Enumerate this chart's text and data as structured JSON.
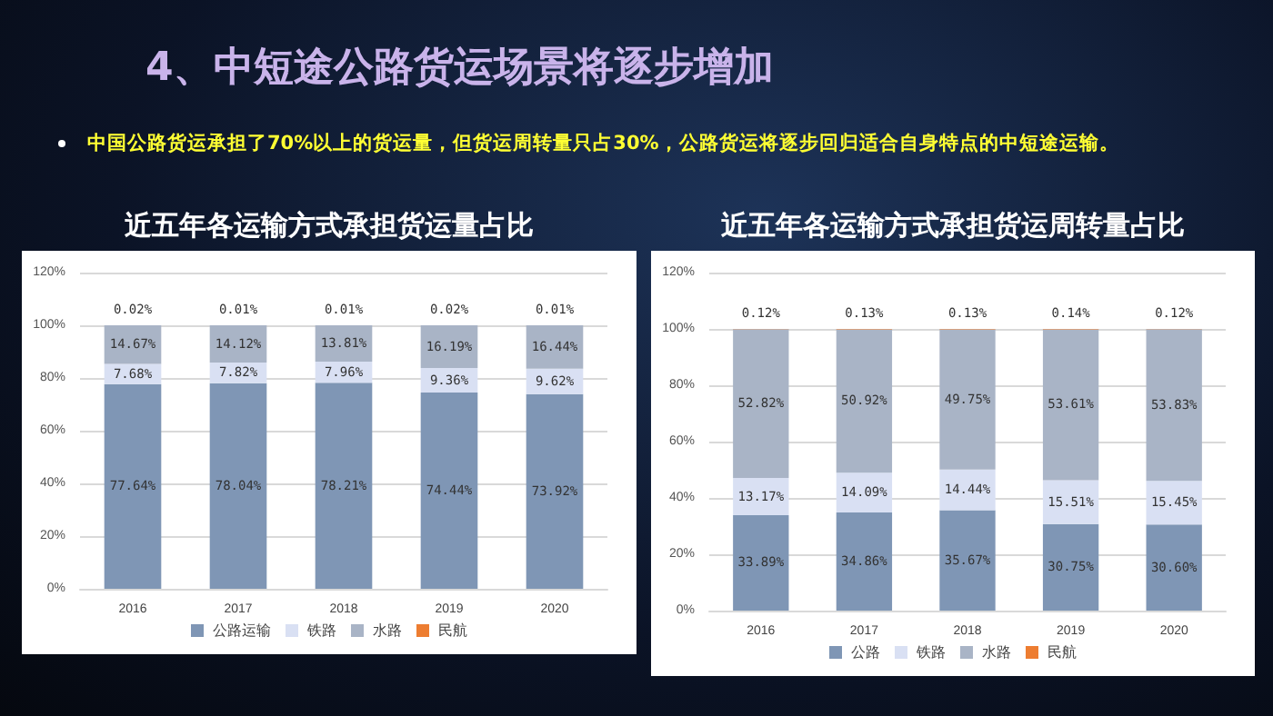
{
  "chart_data": [
    {
      "type": "bar",
      "stacked": true,
      "title": "近五年各运输方式承担货运量占比",
      "annotations": [
        "4、中短途公路货运场景将逐步增加",
        "中国公路货运承担了70%以上的货运量，但货运周转量只占30%，公路货运将逐步回归适合自身特点的中短途运输。"
      ],
      "categories": [
        "2016",
        "2017",
        "2018",
        "2019",
        "2020"
      ],
      "series": [
        {
          "name": "公路运输",
          "color": "#7f96b5",
          "values": [
            77.64,
            78.04,
            78.21,
            74.44,
            73.92
          ],
          "value_labels": [
            "77.64%",
            "78.04%",
            "78.21%",
            "74.44%",
            "73.92%"
          ]
        },
        {
          "name": "铁路",
          "color": "#d9e0f3",
          "values": [
            7.68,
            7.82,
            7.96,
            9.36,
            9.62
          ],
          "value_labels": [
            "7.68%",
            "7.82%",
            "7.96%",
            "9.36%",
            "9.62%"
          ]
        },
        {
          "name": "水路",
          "color": "#a9b4c6",
          "values": [
            14.67,
            14.12,
            13.81,
            16.19,
            16.44
          ],
          "value_labels": [
            "14.67%",
            "14.12%",
            "13.81%",
            "16.19%",
            "16.44%"
          ]
        },
        {
          "name": "民航",
          "color": "#ed7d31",
          "values": [
            0.02,
            0.01,
            0.01,
            0.02,
            0.01
          ],
          "value_labels": [
            "0.02%",
            "0.01%",
            "0.01%",
            "0.02%",
            "0.01%"
          ]
        }
      ],
      "ylim": [
        0,
        120
      ],
      "yticks": [
        {
          "value": 0,
          "label": "0%"
        },
        {
          "value": 20,
          "label": "20%"
        },
        {
          "value": 40,
          "label": "40%"
        },
        {
          "value": 60,
          "label": "60%"
        },
        {
          "value": 80,
          "label": "80%"
        },
        {
          "value": 100,
          "label": "100%"
        },
        {
          "value": 120,
          "label": "120%"
        }
      ],
      "grid": "y",
      "legend": "bottom"
    },
    {
      "type": "bar",
      "stacked": true,
      "title": "近五年各运输方式承担货运周转量占比",
      "categories": [
        "2016",
        "2017",
        "2018",
        "2019",
        "2020"
      ],
      "series": [
        {
          "name": "公路",
          "color": "#7f96b5",
          "values": [
            33.89,
            34.86,
            35.67,
            30.75,
            30.6
          ],
          "value_labels": [
            "33.89%",
            "34.86%",
            "35.67%",
            "30.75%",
            "30.60%"
          ]
        },
        {
          "name": "铁路",
          "color": "#d9e0f3",
          "values": [
            13.17,
            14.09,
            14.44,
            15.51,
            15.45
          ],
          "value_labels": [
            "13.17%",
            "14.09%",
            "14.44%",
            "15.51%",
            "15.45%"
          ]
        },
        {
          "name": "水路",
          "color": "#a9b4c6",
          "values": [
            52.82,
            50.92,
            49.75,
            53.61,
            53.83
          ],
          "value_labels": [
            "52.82%",
            "50.92%",
            "49.75%",
            "53.61%",
            "53.83%"
          ]
        },
        {
          "name": "民航",
          "color": "#ed7d31",
          "values": [
            0.12,
            0.13,
            0.13,
            0.14,
            0.12
          ],
          "value_labels": [
            "0.12%",
            "0.13%",
            "0.13%",
            "0.14%",
            "0.12%"
          ]
        }
      ],
      "ylim": [
        0,
        120
      ],
      "yticks": [
        {
          "value": 0,
          "label": "0%"
        },
        {
          "value": 20,
          "label": "20%"
        },
        {
          "value": 40,
          "label": "40%"
        },
        {
          "value": 60,
          "label": "60%"
        },
        {
          "value": 80,
          "label": "80%"
        },
        {
          "value": 100,
          "label": "100%"
        },
        {
          "value": 120,
          "label": "120%"
        }
      ],
      "grid": "y",
      "legend": "bottom"
    }
  ]
}
